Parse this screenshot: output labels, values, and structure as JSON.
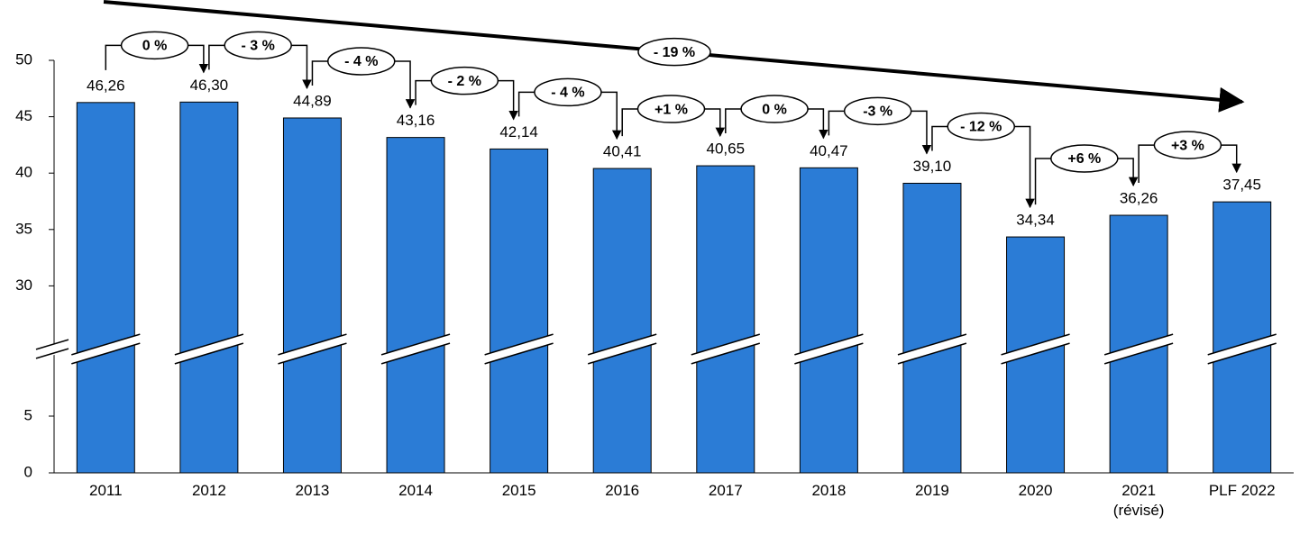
{
  "chart_data": {
    "type": "bar",
    "categories": [
      "2011",
      "2012",
      "2013",
      "2014",
      "2015",
      "2016",
      "2017",
      "2018",
      "2019",
      "2020",
      "2021 (révisé)",
      "PLF 2022"
    ],
    "values": [
      46.26,
      46.3,
      44.89,
      43.16,
      42.14,
      40.41,
      40.65,
      40.47,
      39.1,
      34.34,
      36.26,
      37.45
    ],
    "value_labels": [
      "46,26",
      "46,30",
      "44,89",
      "43,16",
      "42,14",
      "40,41",
      "40,65",
      "40,47",
      "39,10",
      "34,34",
      "36,26",
      "37,45"
    ],
    "color": "#2b7cd6",
    "ylim": [
      0,
      50
    ],
    "axis_break": [
      10,
      25
    ],
    "yticks": [
      0,
      5,
      30,
      35,
      40,
      45,
      50
    ],
    "changes": {
      "values": [
        0,
        -3,
        -4,
        -2,
        -4,
        1,
        0,
        -3,
        -12,
        6,
        3
      ],
      "value_labels": [
        "0 %",
        "- 3 %",
        "- 4 %",
        "- 2 %",
        "- 4 %",
        "+1 %",
        "0 %",
        "-3 %",
        "- 12 %",
        "+6 %",
        "+3 %"
      ]
    },
    "overall_change": {
      "value": -19,
      "label": "- 19 %"
    }
  }
}
